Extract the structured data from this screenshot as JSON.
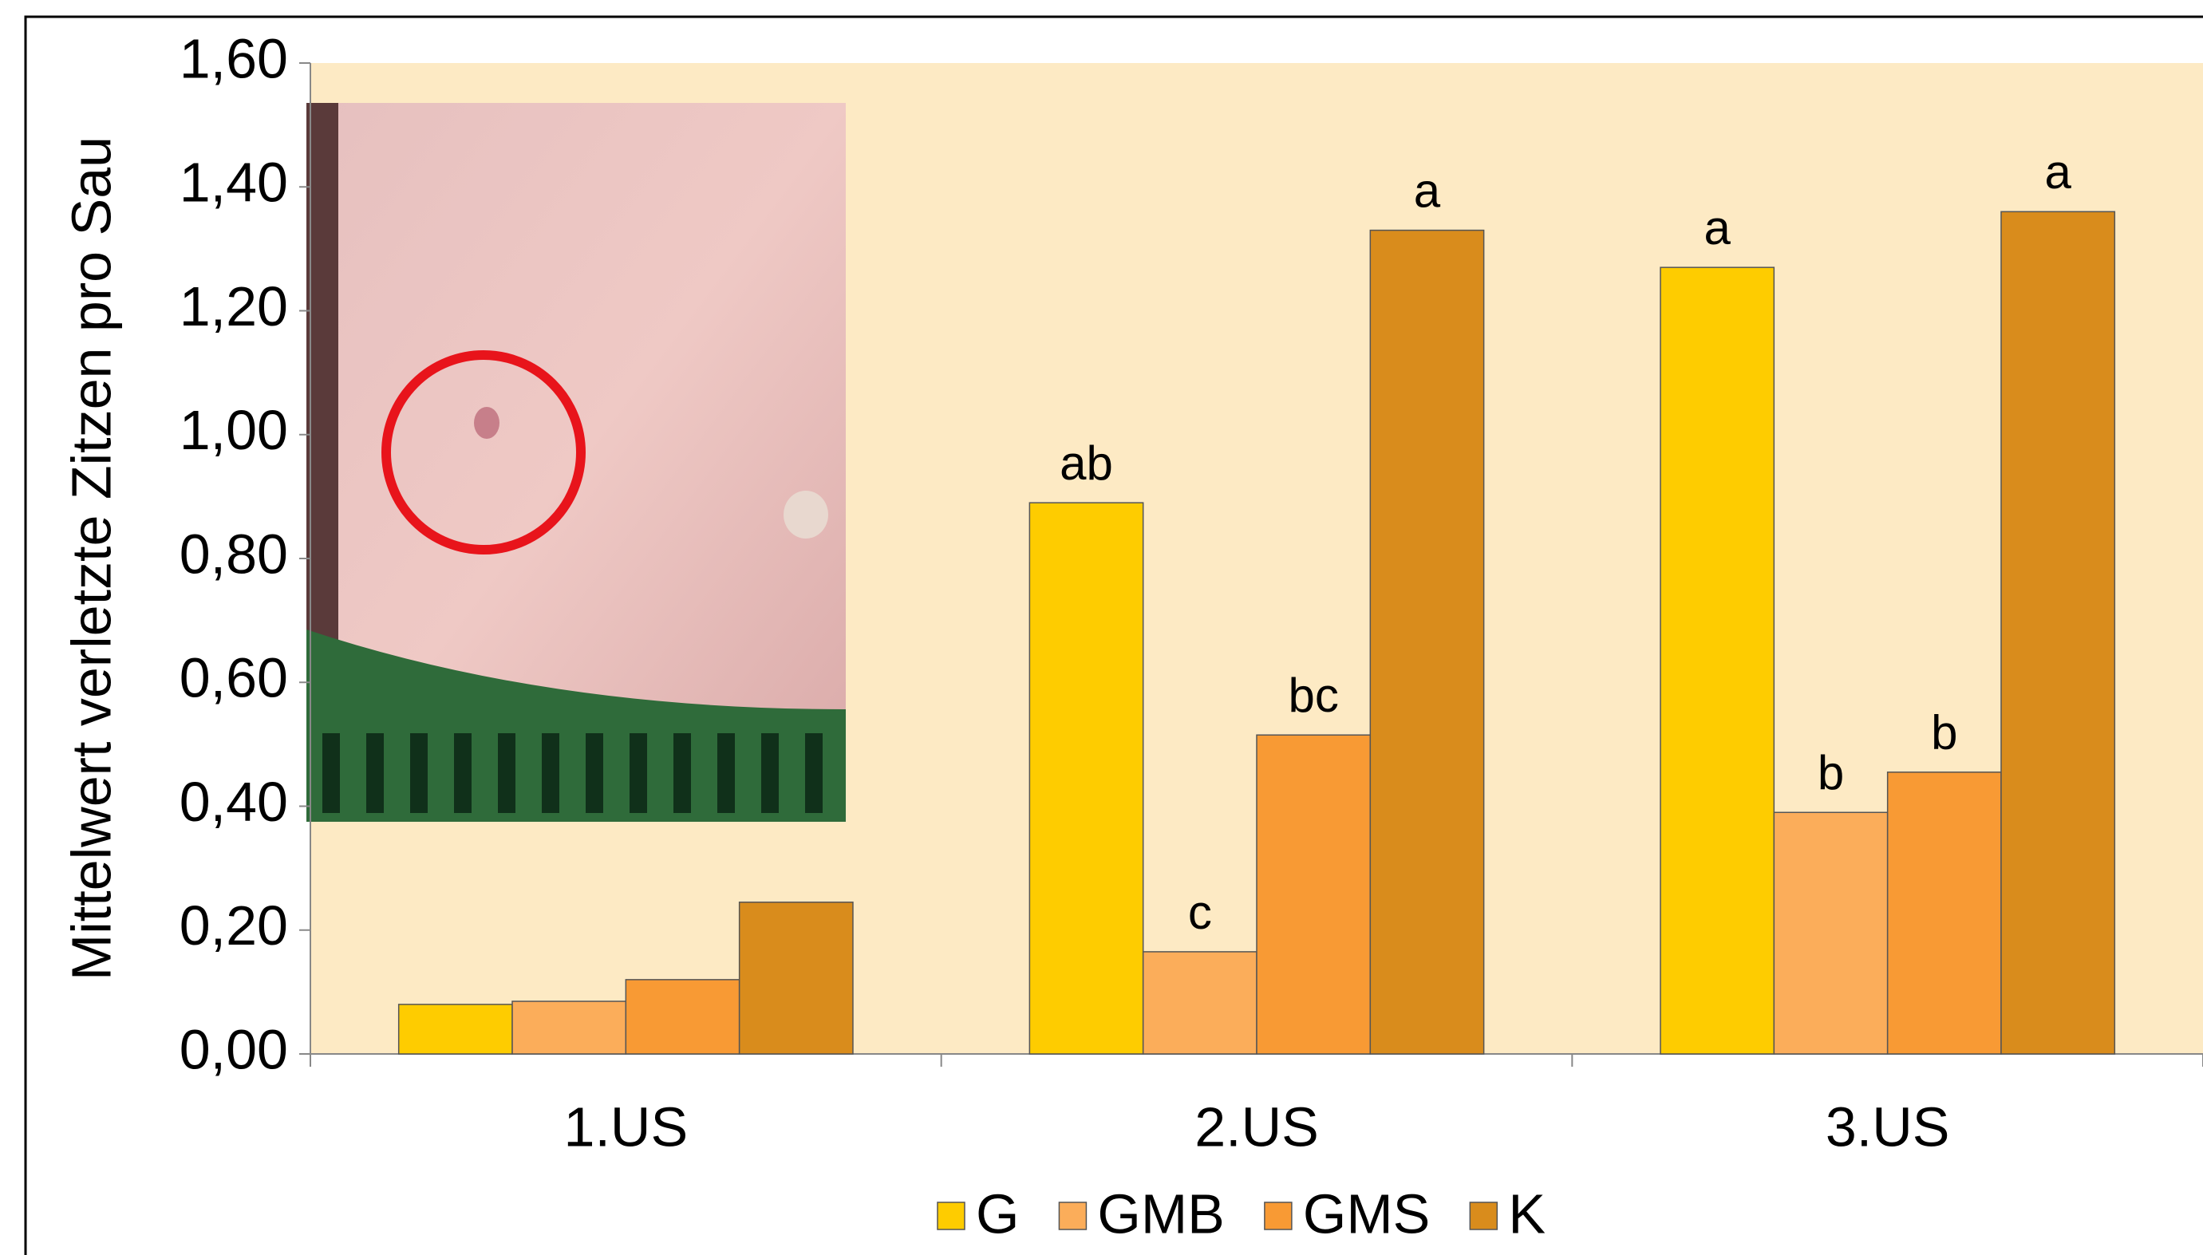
{
  "chart_data": {
    "type": "bar",
    "y_label": "Mittelwert verletzte Zitzen pro Sau",
    "categories": [
      "1.US",
      "2.US",
      "3.US"
    ],
    "series": [
      {
        "name": "G",
        "color": "#fecc00",
        "values": [
          0.08,
          0.89,
          1.27
        ],
        "letters": [
          null,
          "ab",
          "a"
        ]
      },
      {
        "name": "GMB",
        "color": "#fbad5a",
        "values": [
          0.085,
          0.165,
          0.39
        ],
        "letters": [
          null,
          "c",
          "b"
        ]
      },
      {
        "name": "GMS",
        "color": "#f89a34",
        "values": [
          0.12,
          0.515,
          0.455
        ],
        "letters": [
          null,
          "bc",
          "b"
        ]
      },
      {
        "name": "K",
        "color": "#d98c1c",
        "values": [
          0.245,
          1.33,
          1.36
        ],
        "letters": [
          null,
          "a",
          "a"
        ]
      }
    ],
    "ylim": [
      0,
      1.6
    ],
    "yticks": [
      {
        "value": 0,
        "label": "0,00"
      },
      {
        "value": 0.2,
        "label": "0,20"
      },
      {
        "value": 0.4,
        "label": "0,40"
      },
      {
        "value": 0.6,
        "label": "0,60"
      },
      {
        "value": 0.8,
        "label": "0,80"
      },
      {
        "value": 1.0,
        "label": "1,00"
      },
      {
        "value": 1.2,
        "label": "1,20"
      },
      {
        "value": 1.4,
        "label": "1,40"
      },
      {
        "value": 1.6,
        "label": "1,60"
      }
    ],
    "plot_background": "#fdeac4",
    "legend": "bottom"
  }
}
